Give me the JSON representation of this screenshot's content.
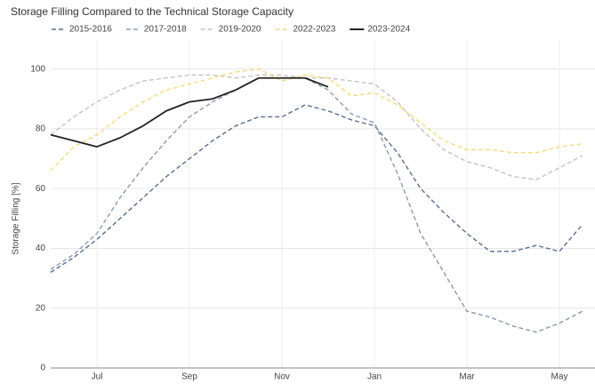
{
  "chart_data": {
    "type": "line",
    "title": "Storage Filling Compared to the Technical Storage Capacity",
    "y_label": "Storage Filling [%]",
    "categories": [
      null,
      null,
      "Jul",
      null,
      null,
      null,
      "Sep",
      null,
      null,
      null,
      "Nov",
      null,
      null,
      null,
      "Jan",
      null,
      null,
      null,
      "Mar",
      null,
      null,
      null,
      "May",
      null
    ],
    "ylim": [
      0,
      110
    ],
    "yticks": [
      0,
      20,
      40,
      60,
      80,
      100
    ],
    "grid": true,
    "series": [
      {
        "name": "2015-2016",
        "color": "#5a6e8c",
        "dash": true,
        "values": [
          32,
          37,
          43,
          50,
          57,
          64,
          70,
          76,
          81,
          84,
          84,
          88,
          86,
          83,
          81,
          72,
          60,
          52,
          45,
          39,
          39,
          41,
          39,
          48
        ]
      },
      {
        "name": "2017-2018",
        "color": "#8a9bb0",
        "dash": true,
        "values": [
          33,
          38,
          45,
          57,
          67,
          76,
          84,
          89,
          93,
          97,
          97,
          97,
          93,
          85,
          82,
          65,
          45,
          32,
          19,
          17,
          14,
          12,
          15,
          19
        ]
      },
      {
        "name": "2019-2020",
        "color": "#c4c4c4",
        "dash": true,
        "values": [
          78,
          84,
          89,
          93,
          96,
          97,
          98,
          98,
          97,
          98,
          98,
          97,
          97,
          96,
          95,
          89,
          80,
          73,
          69,
          67,
          64,
          63,
          67,
          71
        ]
      },
      {
        "name": "2022-2023",
        "color": "#f2dc80",
        "dash": true,
        "values": [
          66,
          74,
          78,
          84,
          89,
          93,
          95,
          97,
          99,
          100,
          96,
          98,
          97,
          91,
          92,
          88,
          82,
          76,
          73,
          73,
          72,
          72,
          74,
          75
        ]
      },
      {
        "name": "2023-2024",
        "color": "#222222",
        "dash": false,
        "values": [
          78,
          76,
          74,
          77,
          81,
          86,
          89,
          90,
          93,
          97,
          97,
          97,
          94,
          null,
          null,
          null,
          null,
          null,
          null,
          null,
          null,
          null,
          null,
          null
        ]
      }
    ]
  }
}
